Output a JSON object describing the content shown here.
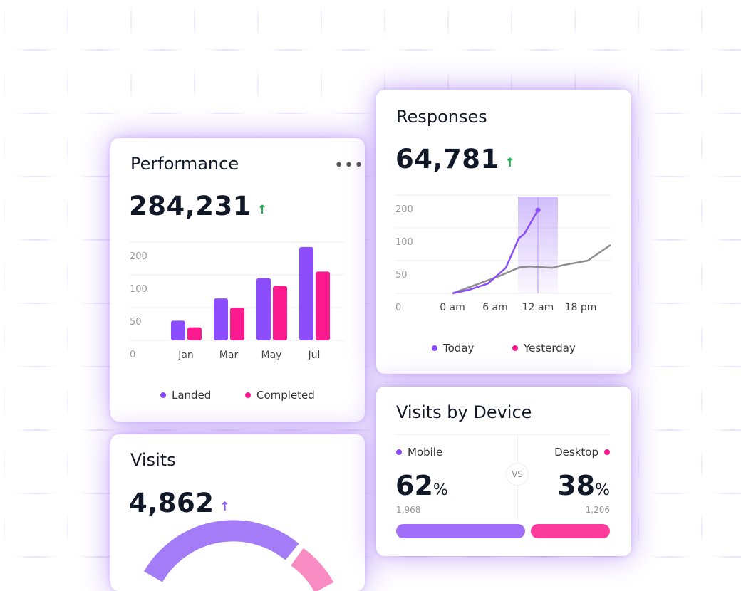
{
  "colors": {
    "purple": "#8b4dfb",
    "pink": "#fb1b8f",
    "up_green": "#16b34a",
    "text": "#111827",
    "bg_grid": "#7a3ee0"
  },
  "performance": {
    "title": "Performance",
    "menu_icon": "more-horizontal-icon",
    "value": "284,231",
    "trend_icon": "arrow-up-icon",
    "legend": [
      "Landed",
      "Completed"
    ]
  },
  "responses": {
    "title": "Responses",
    "value": "64,781",
    "trend_icon": "arrow-up-icon",
    "legend": [
      "Today",
      "Yesterday"
    ]
  },
  "visits": {
    "title": "Visits",
    "value": "4,862",
    "trend_icon": "arrow-up-icon"
  },
  "device": {
    "title": "Visits by Device",
    "vs": "VS",
    "mobile": {
      "label": "Mobile",
      "percent": "62",
      "unit": "%",
      "count": "1,968",
      "share": 62
    },
    "desktop": {
      "label": "Desktop",
      "percent": "38",
      "unit": "%",
      "count": "1,206",
      "share": 38
    }
  },
  "chart_data": [
    {
      "type": "bar",
      "categories": [
        "Jan",
        "Mar",
        "May",
        "Jul"
      ],
      "yticks": [
        "0",
        "50",
        "100",
        "200"
      ],
      "series": [
        {
          "name": "Landed",
          "values": [
            30,
            64,
            95,
            185
          ]
        },
        {
          "name": "Completed",
          "values": [
            20,
            50,
            83,
            110
          ]
        }
      ],
      "grid": true,
      "legend": "bottom"
    },
    {
      "type": "line",
      "xticks": [
        "0 am",
        "6 am",
        "12 am",
        "18 pm"
      ],
      "yticks": [
        "0",
        "50",
        "100",
        "200"
      ],
      "series": [
        {
          "name": "Today",
          "x": [
            0,
            2.5,
            5,
            7.5,
            9.3,
            10.1,
            12
          ],
          "y": [
            0,
            6,
            15,
            39,
            84,
            91,
            154
          ]
        },
        {
          "name": "Yesterday",
          "x": [
            0,
            4.5,
            6.5,
            9.5,
            11,
            14,
            15.5,
            19,
            22.2
          ],
          "y": [
            0,
            18,
            26,
            40,
            41,
            39,
            43,
            50,
            74
          ]
        }
      ],
      "highlight_x": 12,
      "grid": true,
      "legend": "bottom"
    }
  ]
}
